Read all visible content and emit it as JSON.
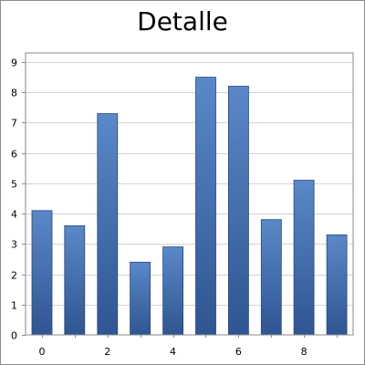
{
  "chart_data": {
    "type": "bar",
    "title": "Detalle",
    "xlabel": "",
    "ylabel": "",
    "x": [
      0,
      1,
      2,
      3,
      4,
      5,
      6,
      7,
      8,
      9
    ],
    "values": [
      4.1,
      3.6,
      7.3,
      2.4,
      2.9,
      8.5,
      8.2,
      3.8,
      5.1,
      3.3
    ],
    "xlim": [
      -0.5,
      9.5
    ],
    "ylim": [
      0,
      9.3
    ],
    "xticks": [
      0,
      2,
      4,
      6,
      8
    ],
    "yticks": [
      0,
      1,
      2,
      3,
      4,
      5,
      6,
      7,
      8,
      9
    ],
    "grid": true,
    "bar_gradient": [
      "#5a88c8",
      "#2f5592"
    ],
    "bar_edge": "#27487c",
    "grid_color": "#d3d3d3",
    "axis_color": "#8a8a8a"
  }
}
